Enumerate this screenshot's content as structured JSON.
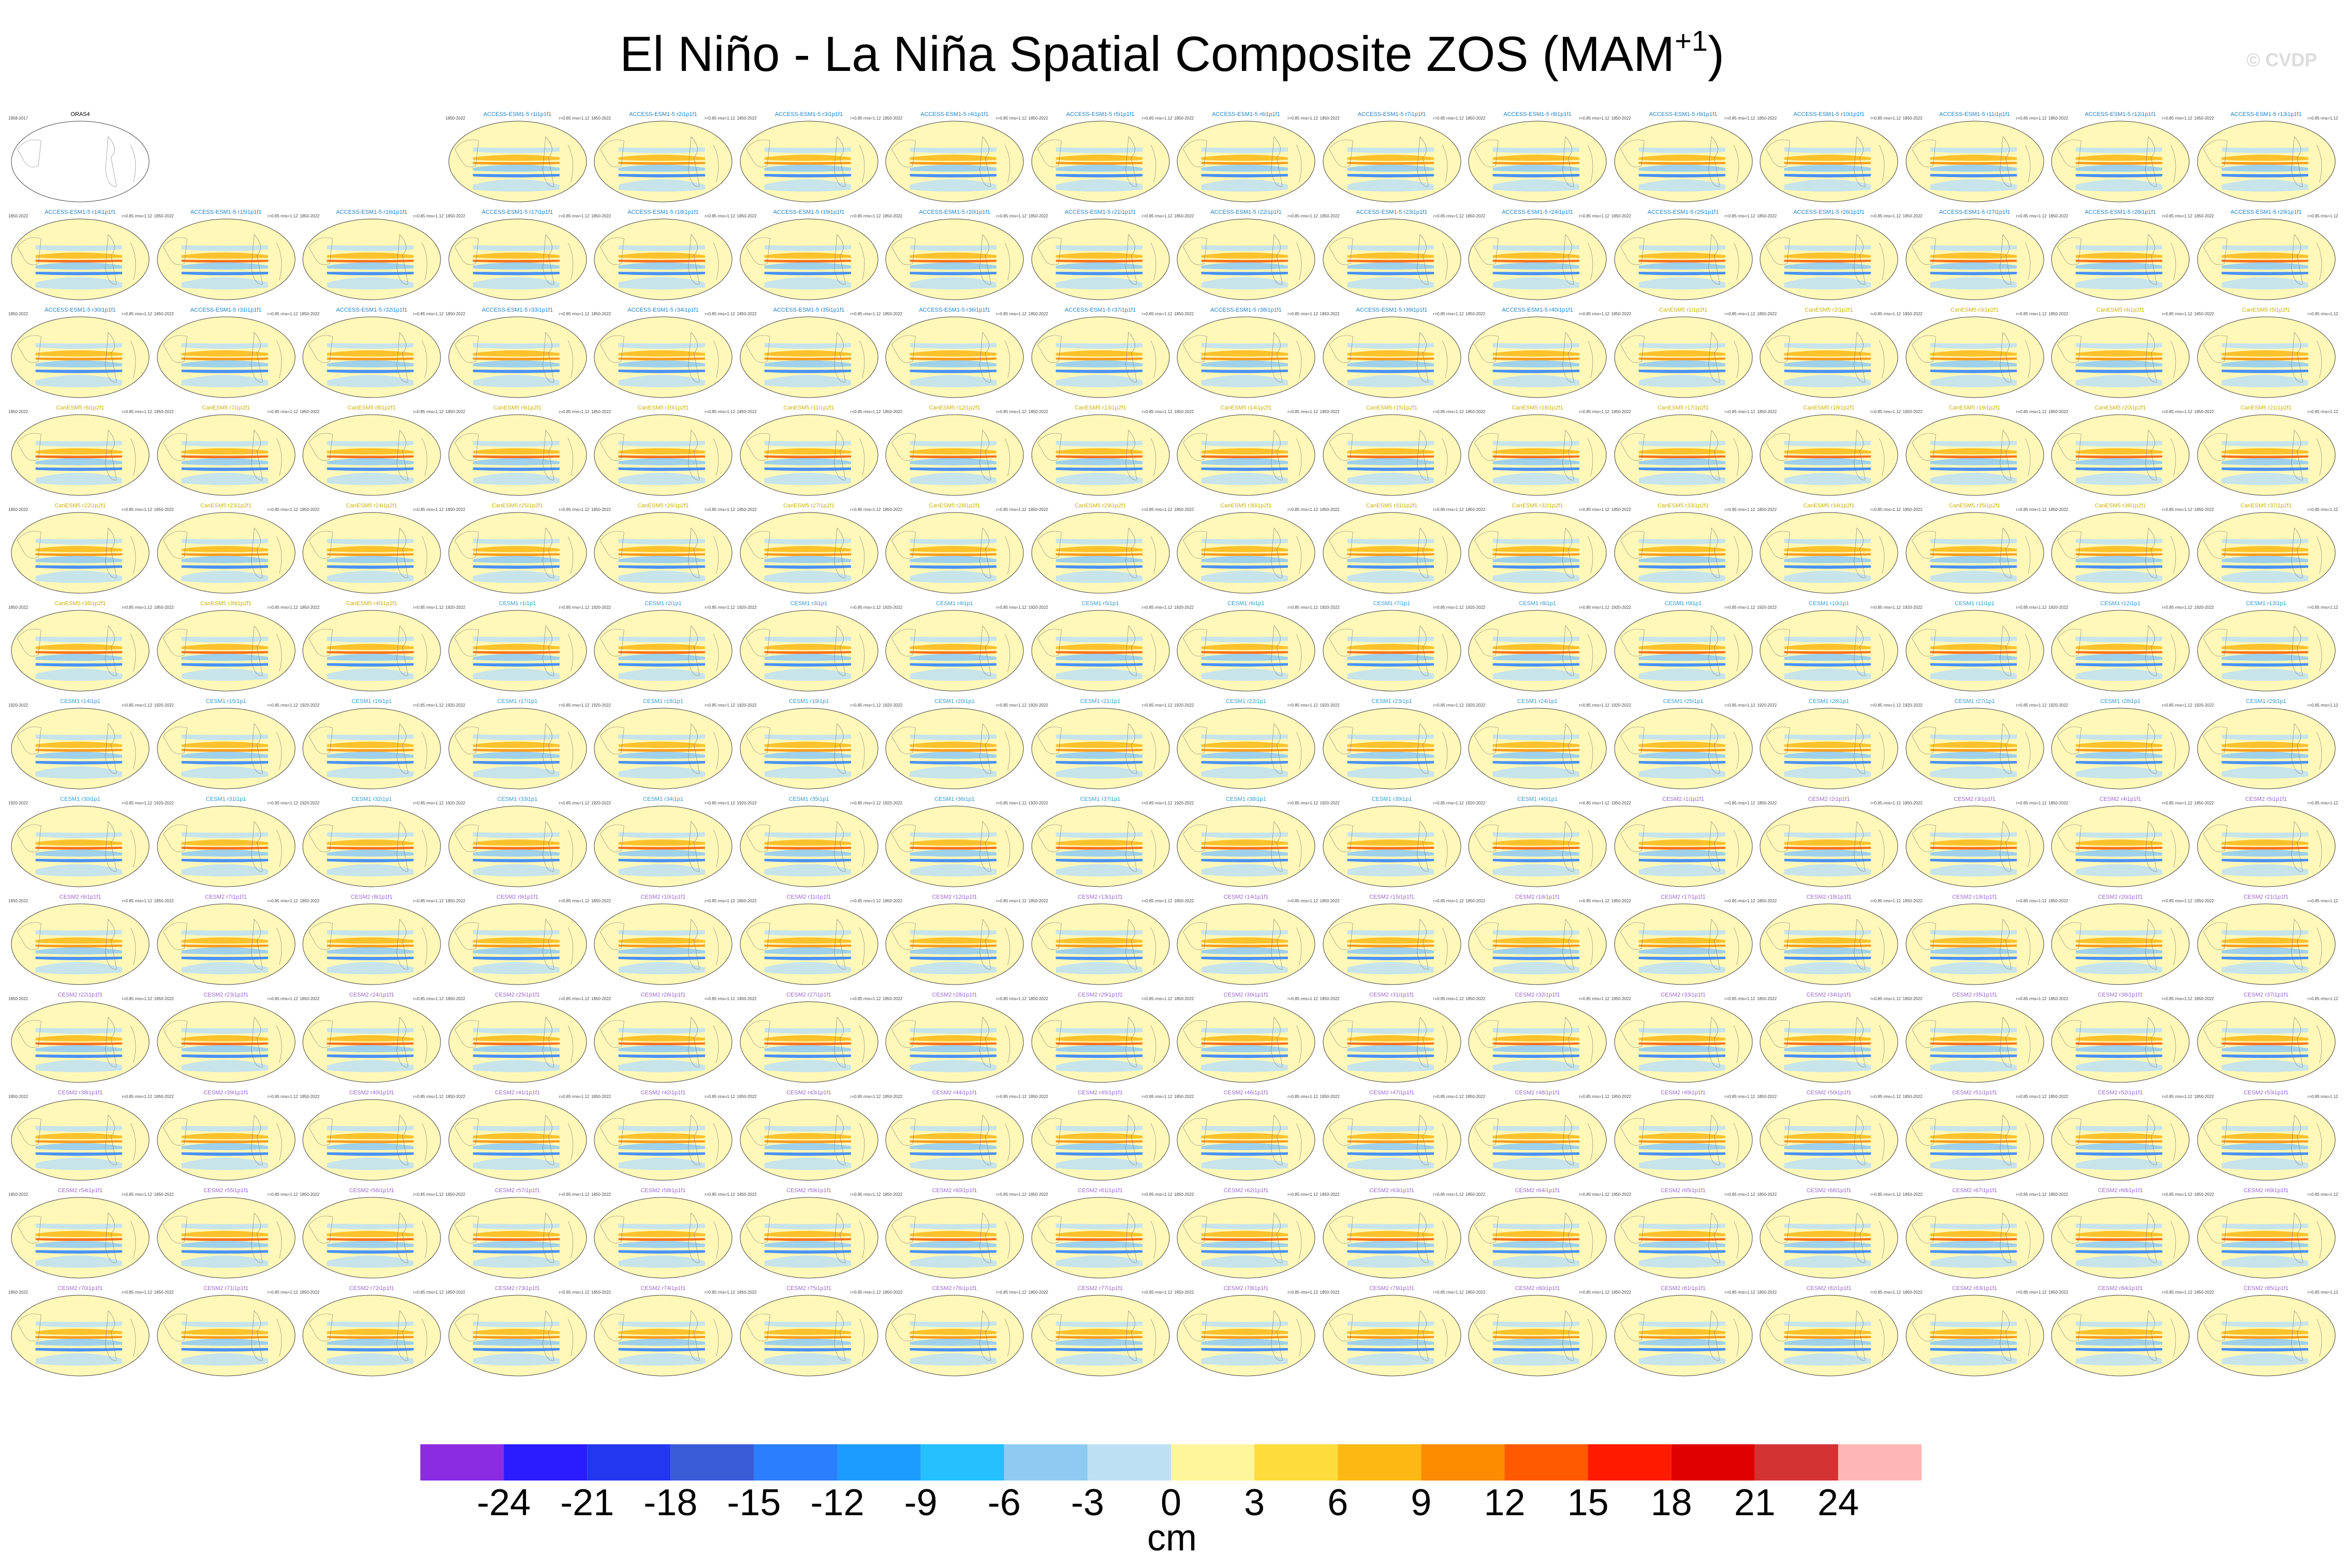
{
  "title": {
    "main": "El Niño - La Niña Spatial Composite ZOS (MAM",
    "superscript": "+1",
    "close": ")"
  },
  "watermark": "© CVDP",
  "colorbar": {
    "units": "cm",
    "tick_labels": [
      "-24",
      "-21",
      "-18",
      "-15",
      "-12",
      "-9",
      "-6",
      "-3",
      "0",
      "3",
      "6",
      "9",
      "12",
      "15",
      "18",
      "21",
      "24"
    ],
    "colors": [
      "#8b2be2",
      "#2b1bff",
      "#2437f0",
      "#3a5cd6",
      "#2a7fff",
      "#1d9cff",
      "#24c0ff",
      "#8fcaf2",
      "#bde0f3",
      "#fff59a",
      "#fedc3c",
      "#fcb913",
      "#fc8c00",
      "#ff5a00",
      "#ff1a00",
      "#e00000",
      "#d33333",
      "#ffb6b6"
    ]
  },
  "panels": {
    "obs": {
      "title": "ORAS4",
      "years": "1958-2017",
      "color": "#000000"
    },
    "groups": [
      {
        "name": "ACCESS-ESM1-5",
        "prefix": "ACCESS-ESM1-5 r",
        "suffix": "i1p1f1",
        "start": 1,
        "count": 40,
        "years": "1850-2022",
        "color": "#1f7fc8"
      },
      {
        "name": "CanESM5",
        "prefix": "CanESM5 r",
        "suffix": "i1p2f1",
        "start": 1,
        "count": 40,
        "years": "1850-2022",
        "color": "#c8b000"
      },
      {
        "name": "CESM1",
        "prefix": "CESM1 r",
        "suffix": "i1p1",
        "start": 1,
        "count": 40,
        "years": "1920-2022",
        "color": "#3399cc"
      },
      {
        "name": "CESM2",
        "prefix": "CESM2 r",
        "suffix": "i1p1f1",
        "start": 1,
        "count": 87,
        "years": "1850-2022",
        "color": "#9966cc"
      }
    ],
    "corr_label": "r=0.85 rms=1.12"
  }
}
